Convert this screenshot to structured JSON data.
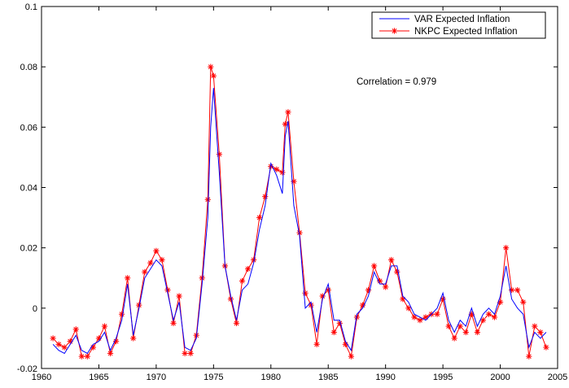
{
  "chart_data": {
    "type": "line",
    "xlim": [
      1960,
      2005
    ],
    "ylim": [
      -0.02,
      0.1
    ],
    "xticks": [
      1960,
      1965,
      1970,
      1975,
      1980,
      1985,
      1990,
      1995,
      2000,
      2005
    ],
    "yticks": [
      -0.02,
      0,
      0.02,
      0.04,
      0.06,
      0.08,
      0.1
    ],
    "xtick_labels": [
      "1960",
      "1965",
      "1970",
      "1975",
      "1980",
      "1985",
      "1990",
      "1995",
      "2000",
      "2005"
    ],
    "ytick_labels": [
      "-0.02",
      "0",
      "0.02",
      "0.04",
      "0.06",
      "0.08",
      "0.1"
    ],
    "grid": false,
    "legend_position": "top-right",
    "annotation": "Correlation = 0.979",
    "x": [
      1961.0,
      1961.5,
      1962.0,
      1962.5,
      1963.0,
      1963.5,
      1964.0,
      1964.5,
      1965.0,
      1965.5,
      1966.0,
      1966.5,
      1967.0,
      1967.5,
      1968.0,
      1968.5,
      1969.0,
      1969.5,
      1970.0,
      1970.5,
      1971.0,
      1971.5,
      1972.0,
      1972.5,
      1973.0,
      1973.5,
      1974.0,
      1974.5,
      1974.75,
      1975.0,
      1975.5,
      1976.0,
      1976.5,
      1977.0,
      1977.5,
      1978.0,
      1978.5,
      1979.0,
      1979.5,
      1980.0,
      1980.5,
      1981.0,
      1981.25,
      1981.5,
      1982.0,
      1982.5,
      1983.0,
      1983.5,
      1984.0,
      1984.5,
      1985.0,
      1985.5,
      1986.0,
      1986.5,
      1987.0,
      1987.5,
      1988.0,
      1988.5,
      1989.0,
      1989.5,
      1990.0,
      1990.5,
      1991.0,
      1991.5,
      1992.0,
      1992.5,
      1993.0,
      1993.5,
      1994.0,
      1994.5,
      1995.0,
      1995.5,
      1996.0,
      1996.5,
      1997.0,
      1997.5,
      1998.0,
      1998.5,
      1999.0,
      1999.5,
      2000.0,
      2000.5,
      2001.0,
      2001.5,
      2002.0,
      2002.5,
      2003.0,
      2003.5,
      2004.0
    ],
    "series": [
      {
        "name": "VAR Expected Inflation",
        "color": "#0000ff",
        "marker": "none",
        "values": [
          -0.012,
          -0.014,
          -0.015,
          -0.012,
          -0.009,
          -0.014,
          -0.015,
          -0.012,
          -0.011,
          -0.008,
          -0.014,
          -0.01,
          -0.004,
          0.008,
          -0.009,
          0.0,
          0.01,
          0.013,
          0.016,
          0.014,
          0.005,
          -0.004,
          0.002,
          -0.013,
          -0.014,
          -0.01,
          0.008,
          0.03,
          0.06,
          0.073,
          0.045,
          0.014,
          0.004,
          -0.004,
          0.006,
          0.008,
          0.015,
          0.026,
          0.034,
          0.048,
          0.044,
          0.038,
          0.057,
          0.062,
          0.034,
          0.024,
          0.0,
          0.002,
          -0.008,
          0.003,
          0.008,
          -0.004,
          -0.004,
          -0.011,
          -0.014,
          -0.002,
          0.0,
          0.004,
          0.012,
          0.008,
          0.008,
          0.014,
          0.014,
          0.004,
          0.002,
          -0.002,
          -0.003,
          -0.004,
          -0.002,
          0.0,
          0.005,
          -0.004,
          -0.008,
          -0.004,
          -0.006,
          0.0,
          -0.006,
          -0.002,
          0.0,
          -0.002,
          0.004,
          0.014,
          0.003,
          0.0,
          -0.002,
          -0.013,
          -0.008,
          -0.01,
          -0.008
        ]
      },
      {
        "name": "NKPC Expected Inflation",
        "color": "#ff0000",
        "marker": "asterisk",
        "values": [
          -0.01,
          -0.012,
          -0.013,
          -0.011,
          -0.007,
          -0.016,
          -0.016,
          -0.013,
          -0.01,
          -0.006,
          -0.015,
          -0.011,
          -0.002,
          0.01,
          -0.01,
          0.001,
          0.012,
          0.015,
          0.019,
          0.016,
          0.006,
          -0.005,
          0.004,
          -0.015,
          -0.015,
          -0.009,
          0.01,
          0.036,
          0.08,
          0.077,
          0.051,
          0.014,
          0.003,
          -0.005,
          0.009,
          0.013,
          0.016,
          0.03,
          0.037,
          0.047,
          0.046,
          0.045,
          0.061,
          0.065,
          0.042,
          0.025,
          0.005,
          0.001,
          -0.012,
          0.004,
          0.006,
          -0.008,
          -0.005,
          -0.012,
          -0.016,
          -0.003,
          0.001,
          0.006,
          0.014,
          0.009,
          0.007,
          0.016,
          0.012,
          0.003,
          0.0,
          -0.003,
          -0.004,
          -0.003,
          -0.002,
          -0.002,
          0.003,
          -0.006,
          -0.01,
          -0.006,
          -0.008,
          -0.002,
          -0.008,
          -0.004,
          -0.002,
          -0.003,
          0.002,
          0.02,
          0.006,
          0.006,
          0.002,
          -0.016,
          -0.006,
          -0.008,
          -0.013
        ]
      }
    ]
  }
}
